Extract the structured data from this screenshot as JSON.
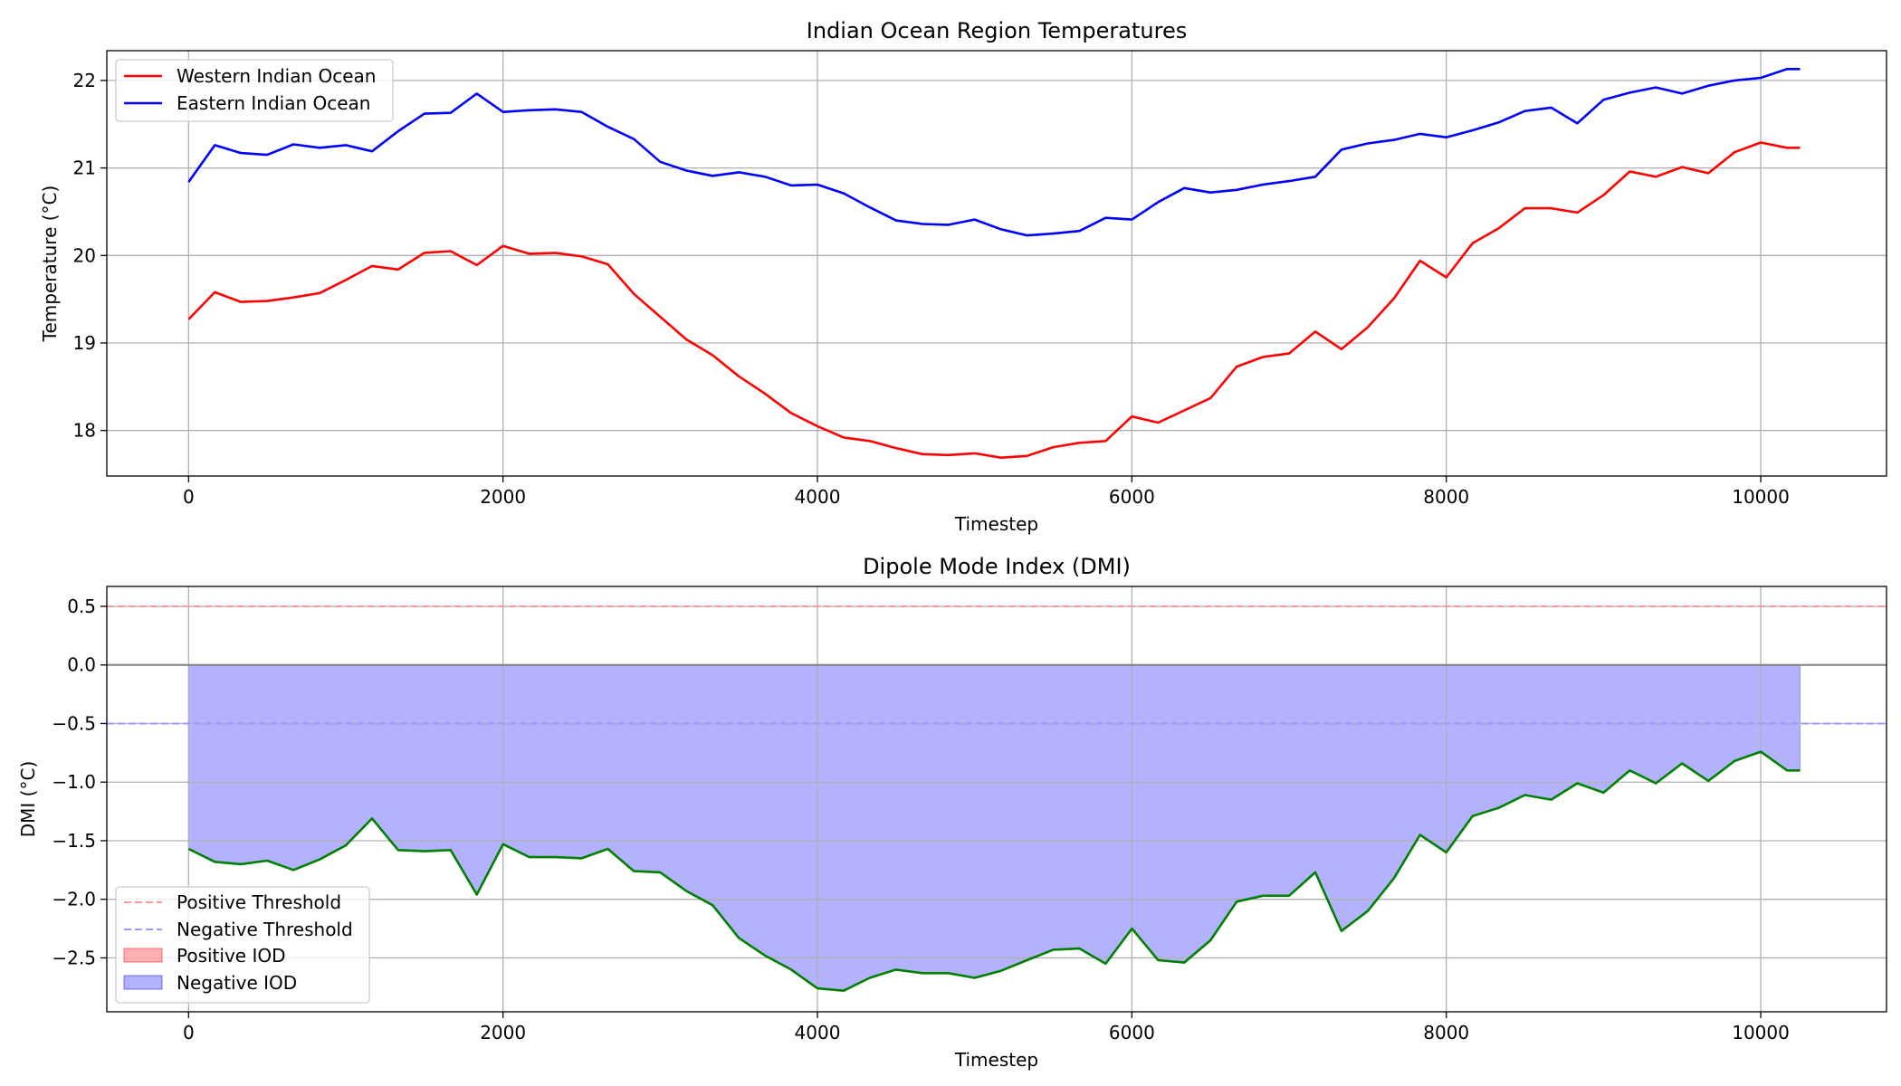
{
  "chart_data": [
    {
      "type": "line",
      "title": "Indian Ocean Region Temperatures",
      "xlabel": "Timestep",
      "ylabel": "Temperature (°C)",
      "xlim": [
        -520,
        10800
      ],
      "ylim": [
        17.48,
        22.34
      ],
      "xticks": [
        0,
        2000,
        4000,
        6000,
        8000,
        10000
      ],
      "xtick_labels": [
        "0",
        "2000",
        "4000",
        "6000",
        "8000",
        "10000"
      ],
      "yticks": [
        18,
        19,
        20,
        21,
        22
      ],
      "ytick_labels": [
        "18",
        "19",
        "20",
        "21",
        "22"
      ],
      "grid": true,
      "legend": "top-left",
      "x": [
        0,
        167,
        333,
        500,
        667,
        833,
        1000,
        1167,
        1333,
        1500,
        1667,
        1833,
        2000,
        2167,
        2333,
        2500,
        2667,
        2833,
        3000,
        3167,
        3333,
        3500,
        3667,
        3833,
        4000,
        4167,
        4333,
        4500,
        4667,
        4833,
        5000,
        5167,
        5333,
        5500,
        5667,
        5833,
        6000,
        6167,
        6333,
        6500,
        6667,
        6833,
        7000,
        7167,
        7333,
        7500,
        7667,
        7833,
        8000,
        8167,
        8333,
        8500,
        8667,
        8833,
        9000,
        9167,
        9333,
        9500,
        9667,
        9833,
        10000,
        10167,
        10250
      ],
      "series": [
        {
          "name": "Western Indian Ocean",
          "color": "#ff0000",
          "values": [
            19.27,
            19.58,
            19.47,
            19.48,
            19.52,
            19.57,
            19.72,
            19.88,
            19.84,
            20.03,
            20.05,
            19.89,
            20.11,
            20.02,
            20.03,
            19.99,
            19.9,
            19.56,
            19.3,
            19.04,
            18.86,
            18.62,
            18.42,
            18.2,
            18.05,
            17.92,
            17.88,
            17.8,
            17.73,
            17.72,
            17.74,
            17.69,
            17.71,
            17.81,
            17.86,
            17.88,
            18.16,
            18.09,
            18.23,
            18.37,
            18.73,
            18.84,
            18.88,
            19.13,
            18.93,
            19.18,
            19.51,
            19.94,
            19.75,
            20.14,
            20.31,
            20.54,
            20.54,
            20.49,
            20.69,
            20.96,
            20.9,
            21.01,
            20.94,
            21.18,
            21.29,
            21.23,
            21.23
          ],
          "line_style": "solid"
        },
        {
          "name": "Eastern Indian Ocean",
          "color": "#0000ff",
          "values": [
            20.84,
            21.26,
            21.17,
            21.15,
            21.27,
            21.23,
            21.26,
            21.19,
            21.42,
            21.62,
            21.63,
            21.85,
            21.64,
            21.66,
            21.67,
            21.64,
            21.47,
            21.33,
            21.07,
            20.97,
            20.91,
            20.95,
            20.9,
            20.8,
            20.81,
            20.71,
            20.55,
            20.4,
            20.36,
            20.35,
            20.41,
            20.3,
            20.23,
            20.25,
            20.28,
            20.43,
            20.41,
            20.61,
            20.77,
            20.72,
            20.75,
            20.81,
            20.85,
            20.9,
            21.21,
            21.28,
            21.32,
            21.39,
            21.35,
            21.43,
            21.52,
            21.65,
            21.69,
            21.51,
            21.78,
            21.86,
            21.92,
            21.85,
            21.94,
            22.0,
            22.03,
            22.13,
            22.13
          ],
          "line_style": "solid"
        }
      ]
    },
    {
      "type": "area",
      "title": "Dipole Mode Index (DMI)",
      "xlabel": "Timestep",
      "ylabel": "DMI (°C)",
      "xlim": [
        -520,
        10800
      ],
      "ylim": [
        -2.96,
        0.67
      ],
      "xticks": [
        0,
        2000,
        4000,
        6000,
        8000,
        10000
      ],
      "xtick_labels": [
        "0",
        "2000",
        "4000",
        "6000",
        "8000",
        "10000"
      ],
      "yticks": [
        0.5,
        0.0,
        -0.5,
        -1.0,
        -1.5,
        -2.0,
        -2.5
      ],
      "ytick_labels": [
        "0.5",
        "0.0",
        "−0.5",
        "−1.0",
        "−1.5",
        "−2.0",
        "−2.5"
      ],
      "grid": true,
      "legend": "bottom-left",
      "x": [
        0,
        167,
        333,
        500,
        667,
        833,
        1000,
        1167,
        1333,
        1500,
        1667,
        1833,
        2000,
        2167,
        2333,
        2500,
        2667,
        2833,
        3000,
        3167,
        3333,
        3500,
        3667,
        3833,
        4000,
        4167,
        4333,
        4500,
        4667,
        4833,
        5000,
        5167,
        5333,
        5500,
        5667,
        5833,
        6000,
        6167,
        6333,
        6500,
        6667,
        6833,
        7000,
        7167,
        7333,
        7500,
        7667,
        7833,
        8000,
        8167,
        8333,
        8500,
        8667,
        8833,
        9000,
        9167,
        9333,
        9500,
        9667,
        9833,
        10000,
        10167,
        10250
      ],
      "series": [
        {
          "name": "DMI",
          "color": "#008000",
          "values": [
            -1.57,
            -1.68,
            -1.7,
            -1.67,
            -1.75,
            -1.66,
            -1.54,
            -1.31,
            -1.58,
            -1.59,
            -1.58,
            -1.96,
            -1.53,
            -1.64,
            -1.64,
            -1.65,
            -1.57,
            -1.76,
            -1.77,
            -1.93,
            -2.05,
            -2.33,
            -2.48,
            -2.6,
            -2.76,
            -2.78,
            -2.67,
            -2.6,
            -2.63,
            -2.63,
            -2.67,
            -2.61,
            -2.52,
            -2.43,
            -2.42,
            -2.55,
            -2.25,
            -2.52,
            -2.54,
            -2.35,
            -2.02,
            -1.97,
            -1.97,
            -1.77,
            -2.27,
            -2.1,
            -1.82,
            -1.45,
            -1.6,
            -1.29,
            -1.22,
            -1.11,
            -1.15,
            -1.01,
            -1.09,
            -0.9,
            -1.01,
            -0.84,
            -0.99,
            -0.82,
            -0.74,
            -0.9,
            -0.9
          ],
          "line_style": "solid"
        }
      ],
      "reference_lines": [
        {
          "y": 0.5,
          "name": "Positive Threshold",
          "color": "#ff9999",
          "line_style": "dashed"
        },
        {
          "y": -0.5,
          "name": "Negative Threshold",
          "color": "#9999ff",
          "line_style": "dashed"
        },
        {
          "y": 0.0,
          "name": "zero",
          "color": "#808080",
          "line_style": "solid"
        }
      ],
      "fills": [
        {
          "name": "Positive IOD",
          "color": "#ff0000",
          "opacity": 0.3,
          "condition": "DMI > 0"
        },
        {
          "name": "Negative IOD",
          "color": "#0000ff",
          "opacity": 0.3,
          "condition": "DMI < 0"
        }
      ]
    }
  ]
}
